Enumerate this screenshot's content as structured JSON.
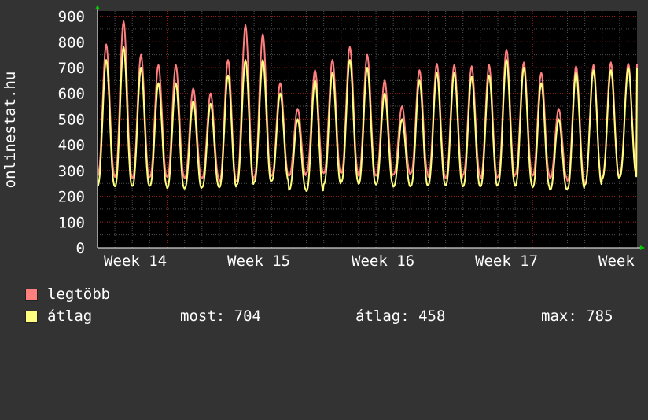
{
  "chart_data": {
    "type": "line",
    "ylabel": "onlinestat.hu",
    "ylim": [
      0,
      920
    ],
    "yticks": [
      0,
      100,
      200,
      300,
      400,
      500,
      600,
      700,
      800,
      900
    ],
    "xticks": [
      "Week 14",
      "Week 15",
      "Week 16",
      "Week 17",
      "Week"
    ],
    "grid": true,
    "colors": {
      "background": "#333333",
      "plot": "#000000",
      "legtobb": "#ff7f7f",
      "atlag": "#ffff7f",
      "grid": "#c00000",
      "minorgrid": "#505050"
    },
    "days": 31,
    "series": [
      {
        "name": "legtöbb",
        "color": "#ff7f7f",
        "daily_min": [
          280,
          275,
          270,
          275,
          275,
          270,
          270,
          255,
          260,
          275,
          280,
          280,
          290,
          290,
          290,
          280,
          280,
          285,
          290,
          275,
          270,
          285,
          270,
          275,
          285,
          280,
          270,
          260,
          245,
          275,
          285
        ],
        "daily_peak": [
          790,
          880,
          750,
          710,
          710,
          620,
          600,
          730,
          865,
          830,
          640,
          540,
          690,
          730,
          780,
          750,
          650,
          550,
          690,
          715,
          710,
          705,
          710,
          770,
          720,
          680,
          540,
          705,
          710,
          720,
          715
        ]
      },
      {
        "name": "átlag",
        "color": "#ffff7f",
        "daily_min": [
          240,
          238,
          240,
          240,
          232,
          230,
          235,
          235,
          245,
          255,
          260,
          225,
          220,
          248,
          255,
          248,
          245,
          237,
          240,
          245,
          242,
          238,
          238,
          245,
          240,
          235,
          225,
          230,
          245,
          270,
          275
        ],
        "daily_peak": [
          730,
          780,
          700,
          640,
          640,
          570,
          560,
          670,
          730,
          730,
          600,
          500,
          650,
          680,
          730,
          700,
          600,
          500,
          650,
          680,
          680,
          665,
          670,
          730,
          700,
          640,
          500,
          680,
          690,
          690,
          700
        ]
      }
    ]
  },
  "legend": [
    {
      "label": "legtöbb",
      "color": "#ff7f7f"
    },
    {
      "label": "átlag",
      "color": "#ffff7f"
    }
  ],
  "stats": {
    "most": "most: 704",
    "atlag": "átlag: 458",
    "max": "max: 785"
  }
}
